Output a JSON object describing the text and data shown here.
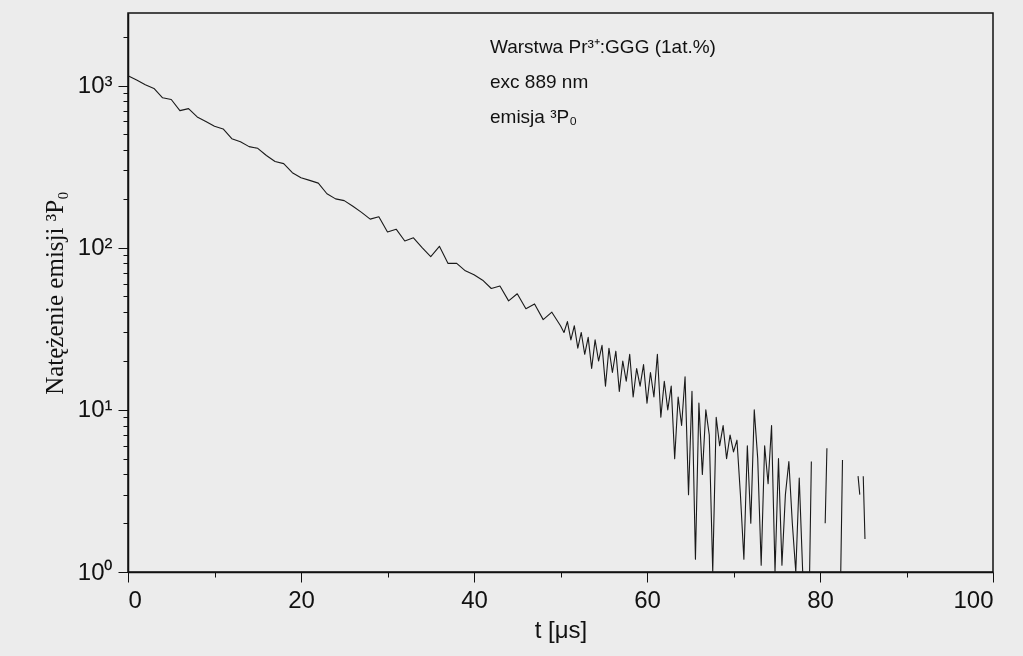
{
  "chart_data": {
    "type": "line",
    "xlabel": "t [μs]",
    "ylabel": "Natężenie emisji ³P₀",
    "annotations": [
      "Warstwa Pr³⁺:GGG (1at.%)",
      "exc 889 nm",
      "emisja ³P₀"
    ],
    "log": "y",
    "grid": false,
    "color": "#1a1a1a",
    "xlim": [
      0,
      100
    ],
    "xticks": [
      0,
      {
        "value": 10,
        "label": null
      },
      20,
      {
        "value": 30,
        "label": null
      },
      40,
      {
        "value": 50,
        "label": null
      },
      60,
      {
        "value": 70,
        "label": null
      },
      80,
      {
        "value": 90,
        "label": null
      },
      100
    ],
    "ylim": [
      1,
      2800
    ],
    "yticks": [
      {
        "value": 1,
        "label": "10⁰"
      },
      {
        "value": 2,
        "label": null
      },
      {
        "value": 3,
        "label": null
      },
      {
        "value": 4,
        "label": null
      },
      {
        "value": 5,
        "label": null
      },
      {
        "value": 6,
        "label": null
      },
      {
        "value": 7,
        "label": null
      },
      {
        "value": 8,
        "label": null
      },
      {
        "value": 9,
        "label": null
      },
      {
        "value": 10,
        "label": "10¹"
      },
      {
        "value": 20,
        "label": null
      },
      {
        "value": 30,
        "label": null
      },
      {
        "value": 40,
        "label": null
      },
      {
        "value": 50,
        "label": null
      },
      {
        "value": 60,
        "label": null
      },
      {
        "value": 70,
        "label": null
      },
      {
        "value": 80,
        "label": null
      },
      {
        "value": 90,
        "label": null
      },
      {
        "value": 100,
        "label": "10²"
      },
      {
        "value": 200,
        "label": null
      },
      {
        "value": 300,
        "label": null
      },
      {
        "value": 400,
        "label": null
      },
      {
        "value": 500,
        "label": null
      },
      {
        "value": 600,
        "label": null
      },
      {
        "value": 700,
        "label": null
      },
      {
        "value": 800,
        "label": null
      },
      {
        "value": 900,
        "label": null
      },
      {
        "value": 1000,
        "label": "10³"
      },
      {
        "value": 2000,
        "label": null
      }
    ],
    "x": [
      0,
      1,
      2,
      3,
      4,
      5,
      6,
      7,
      8,
      9,
      10,
      11,
      12,
      13,
      14,
      15,
      16,
      17,
      18,
      19,
      20,
      21,
      22,
      23,
      24,
      25,
      26,
      27,
      28,
      29,
      30,
      31,
      32,
      33,
      34,
      35,
      36,
      37,
      38,
      39,
      40,
      41,
      42,
      43,
      44,
      45,
      46,
      47,
      48,
      49,
      50,
      50.4,
      50.8,
      51.2,
      51.6,
      52,
      52.4,
      52.8,
      53.2,
      53.6,
      54,
      54.4,
      54.8,
      55.2,
      55.6,
      56,
      56.4,
      56.8,
      57.2,
      57.6,
      58,
      58.4,
      58.8,
      59.2,
      59.6,
      60,
      60.4,
      60.8,
      61.2,
      61.6,
      62,
      62.4,
      62.8,
      63.2,
      63.6,
      64,
      64.4,
      64.8,
      65.2,
      65.6,
      66,
      66.4,
      66.8,
      67.2,
      67.6,
      68,
      68.4,
      68.8,
      69.2,
      69.6,
      70,
      70.4,
      70.8,
      71.2,
      71.6,
      72,
      72.4,
      72.8,
      73.2,
      73.6,
      74,
      74.4,
      74.8,
      75.2,
      75.6,
      76,
      76.4,
      76.8,
      77.2,
      77.6,
      78,
      78.4,
      78.8,
      79,
      79.2,
      80.6,
      80.8,
      81,
      82.4,
      82.6,
      82.8,
      84.4,
      84.6,
      84.8,
      85,
      85.2
    ],
    "values": [
      1150,
      1080,
      1010,
      960,
      840,
      820,
      700,
      720,
      640,
      600,
      560,
      540,
      470,
      450,
      420,
      410,
      370,
      340,
      330,
      290,
      270,
      260,
      250,
      215,
      200,
      195,
      180,
      165,
      150,
      155,
      125,
      130,
      110,
      115,
      100,
      88,
      102,
      80,
      80,
      72,
      68,
      63,
      56,
      58,
      47,
      52,
      42,
      45,
      36,
      40,
      33,
      30,
      35,
      27,
      33,
      24,
      30,
      22,
      28,
      18,
      27,
      20,
      25,
      14,
      24,
      17,
      23,
      13,
      20,
      15,
      22,
      12,
      18,
      14,
      19,
      11,
      17,
      12,
      22,
      9,
      15,
      10,
      14,
      5,
      12,
      8,
      16,
      3,
      13,
      1.2,
      11,
      4,
      10,
      7,
      1,
      9,
      6,
      8,
      5,
      7,
      5.5,
      6.5,
      3,
      1.2,
      6,
      2,
      10,
      5,
      1.1,
      6,
      3.5,
      8,
      1,
      5,
      1.1,
      3,
      4.8,
      2,
      1,
      3.8,
      1,
      null,
      1,
      4.8,
      null,
      2,
      5.8,
      null,
      1,
      4.9,
      null,
      3.9,
      3,
      null,
      3.9,
      1.6
    ]
  }
}
